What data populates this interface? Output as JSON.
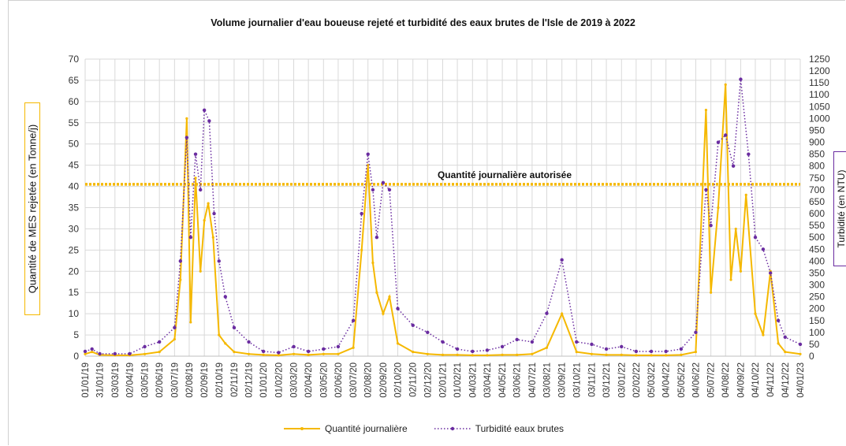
{
  "chart_data": {
    "type": "line",
    "title": "Volume journalier d'eau boueuse rejeté et turbidité des eaux brutes de l'Isle de 2019 à 2022",
    "ylabel_left": "Quantité de MES rejetée (en Tonne/j)",
    "ylabel_right": "Turbidité (en NTU)",
    "ylim_left": [
      0,
      70
    ],
    "yticks_left": [
      0,
      5,
      10,
      15,
      20,
      25,
      30,
      35,
      40,
      45,
      50,
      55,
      60,
      65,
      70
    ],
    "ylim_right": [
      0,
      1250
    ],
    "yticks_right": [
      0,
      50,
      100,
      150,
      200,
      250,
      300,
      350,
      400,
      450,
      500,
      550,
      600,
      650,
      700,
      750,
      800,
      850,
      900,
      950,
      1000,
      1050,
      1100,
      1150,
      1200,
      1250
    ],
    "x_ticks": [
      "01/01/19",
      "31/01/19",
      "03/03/19",
      "02/04/19",
      "03/05/19",
      "02/06/19",
      "03/07/19",
      "02/08/19",
      "02/09/19",
      "02/10/19",
      "02/11/19",
      "02/12/19",
      "01/01/20",
      "01/02/20",
      "03/03/20",
      "02/04/20",
      "03/05/20",
      "02/06/20",
      "03/07/20",
      "02/08/20",
      "02/09/20",
      "02/10/20",
      "02/11/20",
      "02/12/20",
      "02/01/21",
      "01/02/21",
      "04/03/21",
      "03/04/21",
      "04/05/21",
      "03/06/21",
      "04/07/21",
      "03/08/21",
      "03/09/21",
      "03/10/21",
      "03/11/21",
      "03/12/21",
      "03/01/22",
      "02/02/22",
      "05/03/22",
      "04/04/22",
      "05/05/22",
      "04/06/22",
      "05/07/22",
      "04/08/22",
      "04/09/22",
      "04/10/22",
      "04/11/22",
      "04/12/22",
      "04/01/23"
    ],
    "grid": true,
    "legend_position": "bottom",
    "threshold": {
      "label": "Quantité journalière autorisée",
      "value": 40.5,
      "color": "#f5b800"
    },
    "series": [
      {
        "name": "Quantité journalière",
        "axis": "left",
        "color": "#f5b800",
        "style": "solid",
        "points": [
          [
            "01/01/19",
            0.5
          ],
          [
            "15/01/19",
            1
          ],
          [
            "31/01/19",
            0.3
          ],
          [
            "03/03/19",
            0.2
          ],
          [
            "02/04/19",
            0.2
          ],
          [
            "03/05/19",
            0.5
          ],
          [
            "02/06/19",
            1
          ],
          [
            "03/07/19",
            4
          ],
          [
            "15/07/19",
            18
          ],
          [
            "28/07/19",
            56
          ],
          [
            "05/08/19",
            8
          ],
          [
            "15/08/19",
            42
          ],
          [
            "25/08/19",
            20
          ],
          [
            "02/09/19",
            32
          ],
          [
            "10/09/19",
            36
          ],
          [
            "20/09/19",
            28
          ],
          [
            "02/10/19",
            5
          ],
          [
            "15/10/19",
            3
          ],
          [
            "02/11/19",
            1
          ],
          [
            "02/12/19",
            0.5
          ],
          [
            "01/01/20",
            0.3
          ],
          [
            "01/02/20",
            0.2
          ],
          [
            "03/03/20",
            0.5
          ],
          [
            "02/04/20",
            0.3
          ],
          [
            "03/05/20",
            0.5
          ],
          [
            "02/06/20",
            0.5
          ],
          [
            "03/07/20",
            2
          ],
          [
            "20/07/20",
            25
          ],
          [
            "02/08/20",
            45
          ],
          [
            "12/08/20",
            22
          ],
          [
            "20/08/20",
            15
          ],
          [
            "02/09/20",
            10
          ],
          [
            "15/09/20",
            14
          ],
          [
            "02/10/20",
            3
          ],
          [
            "02/11/20",
            1
          ],
          [
            "02/12/20",
            0.5
          ],
          [
            "02/01/21",
            0.3
          ],
          [
            "01/02/21",
            0.3
          ],
          [
            "04/03/21",
            0.2
          ],
          [
            "03/04/21",
            0.2
          ],
          [
            "04/05/21",
            0.3
          ],
          [
            "03/06/21",
            0.3
          ],
          [
            "04/07/21",
            0.5
          ],
          [
            "03/08/21",
            2
          ],
          [
            "03/09/21",
            10
          ],
          [
            "03/10/21",
            1
          ],
          [
            "03/11/21",
            0.5
          ],
          [
            "03/12/21",
            0.3
          ],
          [
            "03/01/22",
            0.3
          ],
          [
            "02/02/22",
            0.2
          ],
          [
            "05/03/22",
            0.2
          ],
          [
            "04/04/22",
            0.2
          ],
          [
            "05/05/22",
            0.3
          ],
          [
            "04/06/22",
            1
          ],
          [
            "25/06/22",
            58
          ],
          [
            "05/07/22",
            15
          ],
          [
            "20/07/22",
            35
          ],
          [
            "04/08/22",
            64
          ],
          [
            "15/08/22",
            18
          ],
          [
            "25/08/22",
            30
          ],
          [
            "04/09/22",
            20
          ],
          [
            "15/09/22",
            38
          ],
          [
            "04/10/22",
            10
          ],
          [
            "20/10/22",
            5
          ],
          [
            "04/11/22",
            20
          ],
          [
            "20/11/22",
            3
          ],
          [
            "04/12/22",
            1
          ],
          [
            "04/01/23",
            0.5
          ]
        ]
      },
      {
        "name": "Turbidité eaux brutes",
        "axis": "right",
        "color": "#6a2ca0",
        "style": "dotted",
        "points": [
          [
            "01/01/19",
            20
          ],
          [
            "15/01/19",
            30
          ],
          [
            "31/01/19",
            10
          ],
          [
            "03/03/19",
            10
          ],
          [
            "02/04/19",
            10
          ],
          [
            "03/05/19",
            40
          ],
          [
            "02/06/19",
            60
          ],
          [
            "03/07/19",
            120
          ],
          [
            "15/07/19",
            400
          ],
          [
            "28/07/19",
            920
          ],
          [
            "05/08/19",
            500
          ],
          [
            "15/08/19",
            850
          ],
          [
            "25/08/19",
            700
          ],
          [
            "02/09/19",
            1035
          ],
          [
            "12/09/19",
            990
          ],
          [
            "22/09/19",
            600
          ],
          [
            "02/10/19",
            400
          ],
          [
            "15/10/19",
            250
          ],
          [
            "02/11/19",
            120
          ],
          [
            "02/12/19",
            60
          ],
          [
            "01/01/20",
            20
          ],
          [
            "01/02/20",
            15
          ],
          [
            "03/03/20",
            40
          ],
          [
            "02/04/20",
            20
          ],
          [
            "03/05/20",
            30
          ],
          [
            "02/06/20",
            40
          ],
          [
            "03/07/20",
            150
          ],
          [
            "20/07/20",
            600
          ],
          [
            "02/08/20",
            850
          ],
          [
            "12/08/20",
            700
          ],
          [
            "20/08/20",
            500
          ],
          [
            "02/09/20",
            730
          ],
          [
            "15/09/20",
            700
          ],
          [
            "02/10/20",
            200
          ],
          [
            "02/11/20",
            130
          ],
          [
            "02/12/20",
            100
          ],
          [
            "02/01/21",
            60
          ],
          [
            "01/02/21",
            30
          ],
          [
            "04/03/21",
            20
          ],
          [
            "03/04/21",
            25
          ],
          [
            "04/05/21",
            40
          ],
          [
            "03/06/21",
            70
          ],
          [
            "04/07/21",
            60
          ],
          [
            "03/08/21",
            180
          ],
          [
            "03/09/21",
            405
          ],
          [
            "03/10/21",
            60
          ],
          [
            "03/11/21",
            50
          ],
          [
            "03/12/21",
            30
          ],
          [
            "03/01/22",
            40
          ],
          [
            "02/02/22",
            20
          ],
          [
            "05/03/22",
            20
          ],
          [
            "04/04/22",
            20
          ],
          [
            "05/05/22",
            30
          ],
          [
            "04/06/22",
            100
          ],
          [
            "25/06/22",
            700
          ],
          [
            "05/07/22",
            550
          ],
          [
            "20/07/22",
            900
          ],
          [
            "04/08/22",
            930
          ],
          [
            "20/08/22",
            800
          ],
          [
            "04/09/22",
            1165
          ],
          [
            "20/09/22",
            850
          ],
          [
            "04/10/22",
            500
          ],
          [
            "20/10/22",
            450
          ],
          [
            "04/11/22",
            350
          ],
          [
            "20/11/22",
            150
          ],
          [
            "04/12/22",
            80
          ],
          [
            "04/01/23",
            50
          ]
        ]
      }
    ]
  }
}
